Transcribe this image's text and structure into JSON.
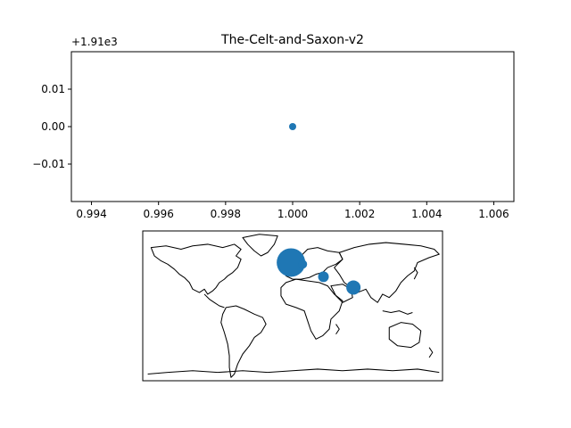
{
  "chart_data": [
    {
      "type": "scatter",
      "title": "The-Celt-and-Saxon-v2",
      "xlabel": "",
      "ylabel": "",
      "xlim": [
        0.9934,
        1.0066
      ],
      "ylim": [
        -0.02,
        0.02
      ],
      "y_offset_label": "+1.91e3",
      "xticks": [
        "0.994",
        "0.996",
        "0.998",
        "1.000",
        "1.002",
        "1.004",
        "1.006"
      ],
      "xtick_values": [
        0.994,
        0.996,
        0.998,
        1.0,
        1.002,
        1.004,
        1.006
      ],
      "yticks": [
        "0.01",
        "0.00",
        "−0.01"
      ],
      "ytick_values": [
        0.01,
        0.0,
        -0.01
      ],
      "points": [
        {
          "x": 1.0,
          "y": 0.0
        }
      ],
      "color": "#1f77b4",
      "grid": false
    },
    {
      "type": "scatter",
      "subtype": "map-bubbles",
      "projection": "plate-carree",
      "lon_range": [
        -180,
        180
      ],
      "lat_range": [
        -90,
        90
      ],
      "color": "#1f77b4",
      "points": [
        {
          "lon": -2,
          "lat": 52,
          "size": 16
        },
        {
          "lon": 12,
          "lat": 50,
          "size": 5
        },
        {
          "lon": 37,
          "lat": 35,
          "size": 6
        },
        {
          "lon": 73,
          "lat": 22,
          "size": 8
        }
      ]
    }
  ]
}
